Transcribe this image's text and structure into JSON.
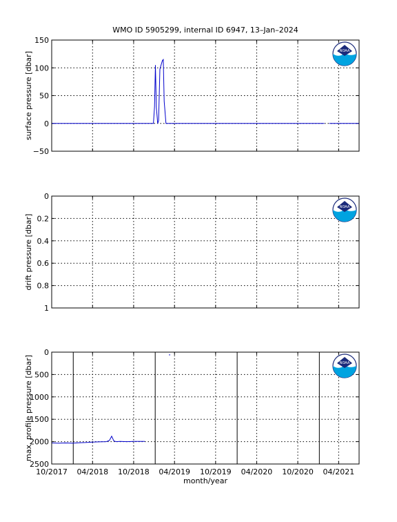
{
  "figure": {
    "title": "WMO ID 5905299, internal ID 6947, 13–Jan–2024",
    "xlabel": "month/year",
    "x_ticks": [
      "10/2017",
      "04/2018",
      "10/2018",
      "04/2019",
      "10/2019",
      "04/2020",
      "10/2020",
      "04/2021"
    ],
    "x_range": [
      "2017-10",
      "2021-07"
    ],
    "logo": "noaa-logo",
    "logo_text": "NOAA"
  },
  "chart_data": [
    {
      "type": "line",
      "ylabel": "surface pressure [dbar]",
      "ylim": [
        -50,
        150
      ],
      "y_reversed": false,
      "y_ticks": [
        "150",
        "100",
        "50",
        "0",
        "−50"
      ],
      "grid": true,
      "series_color": "#0000cc",
      "series": [
        {
          "x": [
            "2017-10-01",
            "2018-01-01",
            "2018-04-01",
            "2018-07-01",
            "2018-10-01",
            "2018-12-28",
            "2019-01-02",
            "2019-01-06",
            "2019-01-10",
            "2019-01-16",
            "2019-01-20",
            "2019-01-26",
            "2019-02-06",
            "2019-02-10",
            "2019-02-14",
            "2019-02-22",
            "2019-03-01",
            "2019-05-01",
            "2019-08-01",
            "2019-11-01",
            "2020-02-01",
            "2020-05-01",
            "2020-08-01",
            "2020-11-01",
            "2021-01-27"
          ],
          "y": [
            0,
            0,
            0,
            0,
            0,
            0,
            30,
            105,
            30,
            0,
            5,
            98,
            113,
            115,
            40,
            0,
            0,
            0,
            0,
            0,
            0,
            0,
            0,
            0,
            0
          ]
        },
        {
          "x": [
            "2021-02-18",
            "2021-07-01"
          ],
          "y": [
            0,
            0
          ]
        }
      ]
    },
    {
      "type": "line",
      "ylabel": "drift pressure [dbar]",
      "ylim": [
        0,
        1
      ],
      "y_reversed": true,
      "y_ticks": [
        "0",
        "0.2",
        "0.4",
        "0.6",
        "0.8",
        "1"
      ],
      "grid": true,
      "series": []
    },
    {
      "type": "line",
      "ylabel": "max. profile pressure [dbar]",
      "ylim": [
        0,
        2500
      ],
      "y_reversed": true,
      "y_ticks": [
        "0",
        "500",
        "1000",
        "1500",
        "2000",
        "2500"
      ],
      "grid": true,
      "series_color": "#0000cc",
      "vertical_lines": [
        "2018-01-05",
        "2019-01-05",
        "2020-01-05",
        "2021-01-05"
      ],
      "series": [
        {
          "x": [
            "2017-10-01",
            "2017-11-01",
            "2017-12-01",
            "2018-01-01",
            "2018-02-01",
            "2018-03-01",
            "2018-04-01",
            "2018-05-01",
            "2018-06-01",
            "2018-06-15",
            "2018-06-25",
            "2018-07-05",
            "2018-07-15",
            "2018-08-01",
            "2018-09-01",
            "2018-10-01",
            "2018-11-01",
            "2018-11-20"
          ],
          "y": [
            2030,
            2035,
            2030,
            2035,
            2025,
            2020,
            2010,
            2005,
            2000,
            1975,
            1880,
            1985,
            2000,
            1995,
            2000,
            1995,
            1995,
            1995
          ]
        },
        {
          "x": [
            "2019-03-10"
          ],
          "y": [
            60
          ]
        }
      ]
    }
  ]
}
